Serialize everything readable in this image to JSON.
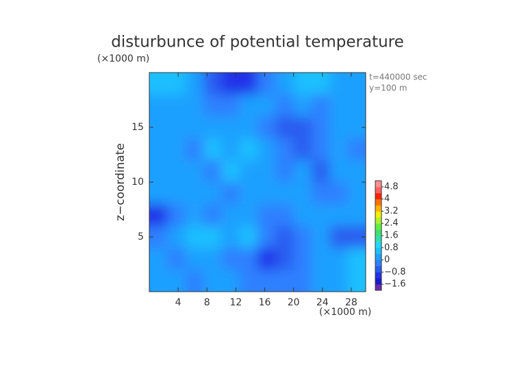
{
  "chart_data": {
    "type": "contour",
    "title": "disturbunce of potential temperature",
    "y_unit": "(×1000 m)",
    "x_unit": "(×1000 m)",
    "ylabel": "z−coordinate",
    "annotations": [
      "t=440000 sec",
      "y=100 m"
    ],
    "xlim": [
      0,
      30
    ],
    "ylim": [
      0,
      20
    ],
    "xticks": [
      4,
      8,
      12,
      16,
      20,
      24,
      28
    ],
    "yticks": [
      5,
      10,
      15
    ],
    "z": [
      [
        0.4,
        0.8,
        0.2,
        -0.6,
        -1.2,
        -1.0,
        -0.2,
        0.2,
        0.4,
        0.6,
        0.2,
        0.2
      ],
      [
        0.2,
        0.2,
        0,
        -0.2,
        -0.4,
        0,
        0.2,
        -0.4,
        0,
        -0.4,
        0.2,
        0
      ],
      [
        0,
        0.2,
        0.2,
        0,
        0.2,
        0.2,
        -0.2,
        -0.6,
        -0.8,
        -0.2,
        0.2,
        0.2
      ],
      [
        0.2,
        0,
        -0.2,
        0.4,
        0.2,
        0.4,
        0,
        -0.4,
        -0.6,
        -0.2,
        0,
        -0.2
      ],
      [
        0,
        0.2,
        0,
        -0.2,
        0.4,
        0.2,
        0.2,
        -0.2,
        0,
        -0.6,
        0.2,
        0
      ],
      [
        0.2,
        0,
        0.2,
        0.2,
        -0.4,
        0.2,
        0,
        0,
        0.2,
        -0.2,
        -0.4,
        0.2
      ],
      [
        -1.0,
        -0.2,
        0.2,
        -0.4,
        0,
        0.2,
        -0.2,
        -0.4,
        0.2,
        0,
        0.2,
        0
      ],
      [
        -0.2,
        0.2,
        0.8,
        0.4,
        0.2,
        0.6,
        -0.4,
        -0.8,
        -0.2,
        0.2,
        -0.6,
        -0.8
      ],
      [
        0,
        -0.2,
        0.2,
        0,
        -0.2,
        -0.2,
        -1.0,
        -0.8,
        -0.4,
        0,
        0.2,
        0.6
      ],
      [
        0.2,
        0,
        -0.2,
        0.2,
        0,
        -0.2,
        -0.4,
        -0.2,
        -0.2,
        0.2,
        0.2,
        0.4
      ]
    ],
    "colorbar": {
      "lim": [
        -2,
        5.2
      ],
      "ticks": [
        4.8,
        4,
        3.2,
        2.4,
        1.6,
        0.8,
        0,
        {
          "value": -0.8,
          "label": "−0.8"
        },
        {
          "value": -1.6,
          "label": "−1.6"
        }
      ],
      "colormap": [
        "#6a2bb0",
        "#1a1acd",
        "#2233e8",
        "#2a5cf0",
        "#2f80ff",
        "#1ea0ff",
        "#1cc0ff",
        "#22d8f8",
        "#30e0b0",
        "#40e070",
        "#60f040",
        "#b0f030",
        "#f0f000",
        "#ffb000",
        "#ff7000",
        "#ff2000",
        "#ff6060",
        "#ff9090"
      ]
    }
  }
}
